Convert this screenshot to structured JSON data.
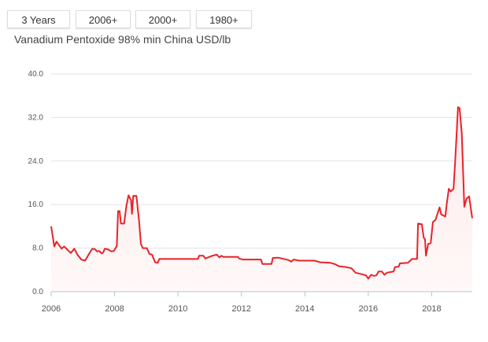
{
  "range_buttons": [
    "3 Years",
    "2006+",
    "2000+",
    "1980+"
  ],
  "chart_data": {
    "type": "area",
    "title": "Vanadium Pentoxide 98% min China USD/lb",
    "xlabel": "",
    "ylabel": "",
    "xlim": [
      2006,
      2019.28
    ],
    "ylim": [
      0,
      40
    ],
    "yticks": [
      0,
      8,
      16,
      24,
      32,
      40
    ],
    "ytick_labels": [
      "0.0",
      "8.0",
      "16.0",
      "24.0",
      "32.0",
      "40.0"
    ],
    "xticks": [
      2006,
      2008,
      2010,
      2012,
      2014,
      2016,
      2018
    ],
    "xtick_labels": [
      "2006",
      "2008",
      "2010",
      "2012",
      "2014",
      "2016",
      "2018"
    ],
    "grid": true,
    "line_color": "#e8232a",
    "fill_color": "#fdeaea",
    "series": [
      {
        "points": [
          [
            2006.0,
            12.0
          ],
          [
            2006.06,
            9.8
          ],
          [
            2006.1,
            8.3
          ],
          [
            2006.17,
            9.2
          ],
          [
            2006.33,
            7.9
          ],
          [
            2006.41,
            8.3
          ],
          [
            2006.62,
            7.1
          ],
          [
            2006.73,
            7.9
          ],
          [
            2006.83,
            6.8
          ],
          [
            2006.95,
            5.9
          ],
          [
            2007.07,
            5.7
          ],
          [
            2007.24,
            7.4
          ],
          [
            2007.3,
            7.9
          ],
          [
            2007.38,
            7.8
          ],
          [
            2007.45,
            7.4
          ],
          [
            2007.51,
            7.5
          ],
          [
            2007.6,
            7.0
          ],
          [
            2007.65,
            7.3
          ],
          [
            2007.69,
            7.9
          ],
          [
            2007.78,
            7.8
          ],
          [
            2007.9,
            7.4
          ],
          [
            2007.98,
            7.5
          ],
          [
            2008.07,
            8.4
          ],
          [
            2008.11,
            14.8
          ],
          [
            2008.16,
            14.8
          ],
          [
            2008.2,
            12.5
          ],
          [
            2008.3,
            12.5
          ],
          [
            2008.37,
            15.7
          ],
          [
            2008.44,
            17.7
          ],
          [
            2008.52,
            16.8
          ],
          [
            2008.55,
            14.3
          ],
          [
            2008.59,
            17.6
          ],
          [
            2008.69,
            17.6
          ],
          [
            2008.74,
            14.7
          ],
          [
            2008.77,
            13.2
          ],
          [
            2008.83,
            8.8
          ],
          [
            2008.89,
            8.0
          ],
          [
            2009.02,
            8.0
          ],
          [
            2009.1,
            6.9
          ],
          [
            2009.18,
            6.8
          ],
          [
            2009.28,
            5.4
          ],
          [
            2009.36,
            5.3
          ],
          [
            2009.41,
            6.0
          ],
          [
            2010.63,
            6.0
          ],
          [
            2010.67,
            6.6
          ],
          [
            2010.8,
            6.6
          ],
          [
            2010.86,
            6.1
          ],
          [
            2011.08,
            6.6
          ],
          [
            2011.22,
            6.8
          ],
          [
            2011.31,
            6.3
          ],
          [
            2011.37,
            6.6
          ],
          [
            2011.43,
            6.4
          ],
          [
            2011.89,
            6.4
          ],
          [
            2011.93,
            6.1
          ],
          [
            2012.04,
            5.9
          ],
          [
            2012.62,
            5.9
          ],
          [
            2012.66,
            5.1
          ],
          [
            2012.95,
            5.1
          ],
          [
            2012.99,
            6.2
          ],
          [
            2013.16,
            6.25
          ],
          [
            2013.49,
            5.8
          ],
          [
            2013.57,
            5.5
          ],
          [
            2013.65,
            5.9
          ],
          [
            2013.82,
            5.7
          ],
          [
            2014.31,
            5.7
          ],
          [
            2014.48,
            5.4
          ],
          [
            2014.81,
            5.3
          ],
          [
            2014.98,
            5.0
          ],
          [
            2015.06,
            4.7
          ],
          [
            2015.31,
            4.5
          ],
          [
            2015.47,
            4.3
          ],
          [
            2015.6,
            3.5
          ],
          [
            2015.8,
            3.2
          ],
          [
            2015.93,
            3.0
          ],
          [
            2016.0,
            2.4
          ],
          [
            2016.09,
            3.1
          ],
          [
            2016.18,
            2.9
          ],
          [
            2016.26,
            3.0
          ],
          [
            2016.32,
            3.7
          ],
          [
            2016.43,
            3.7
          ],
          [
            2016.51,
            3.1
          ],
          [
            2016.59,
            3.5
          ],
          [
            2016.8,
            3.7
          ],
          [
            2016.84,
            4.5
          ],
          [
            2016.96,
            4.6
          ],
          [
            2017.0,
            5.2
          ],
          [
            2017.25,
            5.3
          ],
          [
            2017.38,
            6.0
          ],
          [
            2017.54,
            6.0
          ],
          [
            2017.57,
            12.5
          ],
          [
            2017.69,
            12.4
          ],
          [
            2017.75,
            9.9
          ],
          [
            2017.79,
            9.6
          ],
          [
            2017.82,
            6.6
          ],
          [
            2017.89,
            8.8
          ],
          [
            2017.97,
            8.9
          ],
          [
            2018.04,
            12.8
          ],
          [
            2018.12,
            13.2
          ],
          [
            2018.25,
            15.5
          ],
          [
            2018.3,
            14.2
          ],
          [
            2018.43,
            13.8
          ],
          [
            2018.47,
            15.9
          ],
          [
            2018.54,
            18.9
          ],
          [
            2018.6,
            18.4
          ],
          [
            2018.69,
            18.9
          ],
          [
            2018.74,
            23.7
          ],
          [
            2018.83,
            33.9
          ],
          [
            2018.88,
            33.7
          ],
          [
            2018.95,
            29.1
          ],
          [
            2019.03,
            15.6
          ],
          [
            2019.1,
            17.1
          ],
          [
            2019.18,
            17.5
          ],
          [
            2019.28,
            13.5
          ]
        ]
      }
    ]
  }
}
